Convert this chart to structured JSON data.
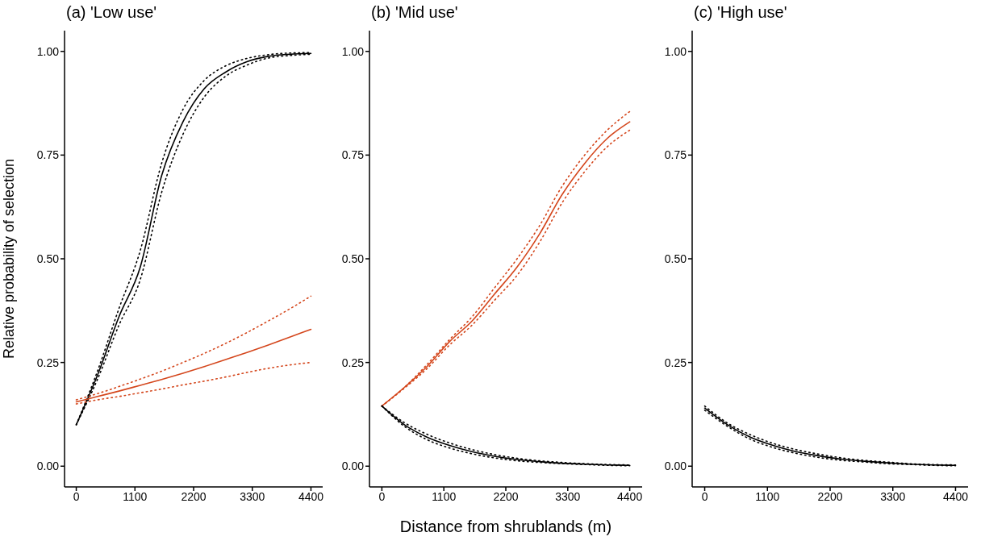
{
  "chart_data": [
    {
      "type": "line",
      "title": "(a) 'Low use'",
      "ylabel": "Relative probability of selection",
      "x": [
        0,
        400,
        800,
        1200,
        1600,
        2000,
        2400,
        2800,
        3200,
        3600,
        4000,
        4400
      ],
      "xlim": [
        -220,
        4620
      ],
      "xticks": [
        0,
        1100,
        2200,
        3300,
        4400
      ],
      "ylim": [
        -0.05,
        1.05
      ],
      "yticks": [
        {
          "value": 0,
          "label": "0.00"
        },
        {
          "value": 0.25,
          "label": "0.25"
        },
        {
          "value": 0.5,
          "label": "0.50"
        },
        {
          "value": 0.75,
          "label": "0.75"
        },
        {
          "value": 1,
          "label": "1.00"
        }
      ],
      "series": [
        {
          "color": "#000000",
          "line_style": "solid",
          "values": [
            0.1,
            0.22,
            0.36,
            0.48,
            0.7,
            0.83,
            0.91,
            0.95,
            0.975,
            0.988,
            0.993,
            0.995
          ]
        },
        {
          "color": "#000000",
          "line_style": "dotted",
          "values": [
            0.1,
            0.23,
            0.38,
            0.52,
            0.73,
            0.86,
            0.93,
            0.965,
            0.983,
            0.992,
            0.996,
            0.997
          ]
        },
        {
          "color": "#000000",
          "line_style": "dotted",
          "values": [
            0.1,
            0.21,
            0.34,
            0.45,
            0.66,
            0.8,
            0.89,
            0.94,
            0.967,
            0.984,
            0.99,
            0.993
          ]
        },
        {
          "color": "#d4461c",
          "line_style": "solid",
          "values": [
            0.155,
            0.168,
            0.181,
            0.195,
            0.209,
            0.224,
            0.24,
            0.257,
            0.274,
            0.292,
            0.311,
            0.33
          ]
        },
        {
          "color": "#d4461c",
          "line_style": "dotted",
          "values": [
            0.16,
            0.175,
            0.192,
            0.21,
            0.229,
            0.25,
            0.272,
            0.296,
            0.322,
            0.35,
            0.379,
            0.41
          ]
        },
        {
          "color": "#d4461c",
          "line_style": "dotted",
          "values": [
            0.15,
            0.16,
            0.168,
            0.177,
            0.186,
            0.196,
            0.205,
            0.215,
            0.226,
            0.236,
            0.244,
            0.25
          ]
        }
      ]
    },
    {
      "type": "line",
      "title": "(b) 'Mid use'",
      "xlabel": "Distance from shrublands (m)",
      "x": [
        0,
        400,
        800,
        1200,
        1600,
        2000,
        2400,
        2800,
        3200,
        3600,
        4000,
        4400
      ],
      "xlim": [
        -220,
        4620
      ],
      "xticks": [
        0,
        1100,
        2200,
        3300,
        4400
      ],
      "ylim": [
        -0.05,
        1.05
      ],
      "yticks": [
        {
          "value": 0,
          "label": "0.00"
        },
        {
          "value": 0.25,
          "label": "0.25"
        },
        {
          "value": 0.5,
          "label": "0.50"
        },
        {
          "value": 0.75,
          "label": "0.75"
        },
        {
          "value": 1,
          "label": "1.00"
        }
      ],
      "series": [
        {
          "color": "#d4461c",
          "line_style": "solid",
          "values": [
            0.145,
            0.19,
            0.24,
            0.3,
            0.35,
            0.415,
            0.48,
            0.56,
            0.655,
            0.73,
            0.79,
            0.83
          ]
        },
        {
          "color": "#d4461c",
          "line_style": "dotted",
          "values": [
            0.145,
            0.19,
            0.245,
            0.305,
            0.36,
            0.43,
            0.5,
            0.58,
            0.675,
            0.75,
            0.81,
            0.855
          ]
        },
        {
          "color": "#d4461c",
          "line_style": "dotted",
          "values": [
            0.145,
            0.188,
            0.235,
            0.292,
            0.34,
            0.4,
            0.46,
            0.54,
            0.635,
            0.71,
            0.77,
            0.81
          ]
        },
        {
          "color": "#000000",
          "line_style": "solid",
          "values": [
            0.145,
            0.1,
            0.07,
            0.05,
            0.035,
            0.024,
            0.016,
            0.011,
            0.007,
            0.005,
            0.003,
            0.002
          ]
        },
        {
          "color": "#000000",
          "line_style": "dotted",
          "values": [
            0.145,
            0.105,
            0.077,
            0.056,
            0.04,
            0.028,
            0.019,
            0.013,
            0.009,
            0.006,
            0.004,
            0.003
          ]
        },
        {
          "color": "#000000",
          "line_style": "dotted",
          "values": [
            0.145,
            0.096,
            0.064,
            0.044,
            0.03,
            0.02,
            0.013,
            0.009,
            0.006,
            0.004,
            0.002,
            0.001
          ]
        }
      ]
    },
    {
      "type": "line",
      "title": "(c) 'High use'",
      "x": [
        0,
        400,
        800,
        1200,
        1600,
        2000,
        2400,
        2800,
        3200,
        3600,
        4000,
        4400
      ],
      "xlim": [
        -220,
        4620
      ],
      "xticks": [
        0,
        1100,
        2200,
        3300,
        4400
      ],
      "ylim": [
        -0.05,
        1.05
      ],
      "yticks": [
        {
          "value": 0,
          "label": "0.00"
        },
        {
          "value": 0.25,
          "label": "0.25"
        },
        {
          "value": 0.5,
          "label": "0.50"
        },
        {
          "value": 0.75,
          "label": "0.75"
        },
        {
          "value": 1,
          "label": "1.00"
        }
      ],
      "series": [
        {
          "color": "#000000",
          "line_style": "solid",
          "values": [
            0.14,
            0.1,
            0.07,
            0.05,
            0.035,
            0.025,
            0.017,
            0.012,
            0.008,
            0.005,
            0.003,
            0.002
          ]
        },
        {
          "color": "#000000",
          "line_style": "dotted",
          "values": [
            0.145,
            0.104,
            0.076,
            0.055,
            0.04,
            0.029,
            0.02,
            0.014,
            0.01,
            0.006,
            0.004,
            0.003
          ]
        },
        {
          "color": "#000000",
          "line_style": "dotted",
          "values": [
            0.135,
            0.096,
            0.065,
            0.045,
            0.031,
            0.021,
            0.014,
            0.01,
            0.006,
            0.004,
            0.002,
            0.001
          ]
        }
      ]
    }
  ]
}
